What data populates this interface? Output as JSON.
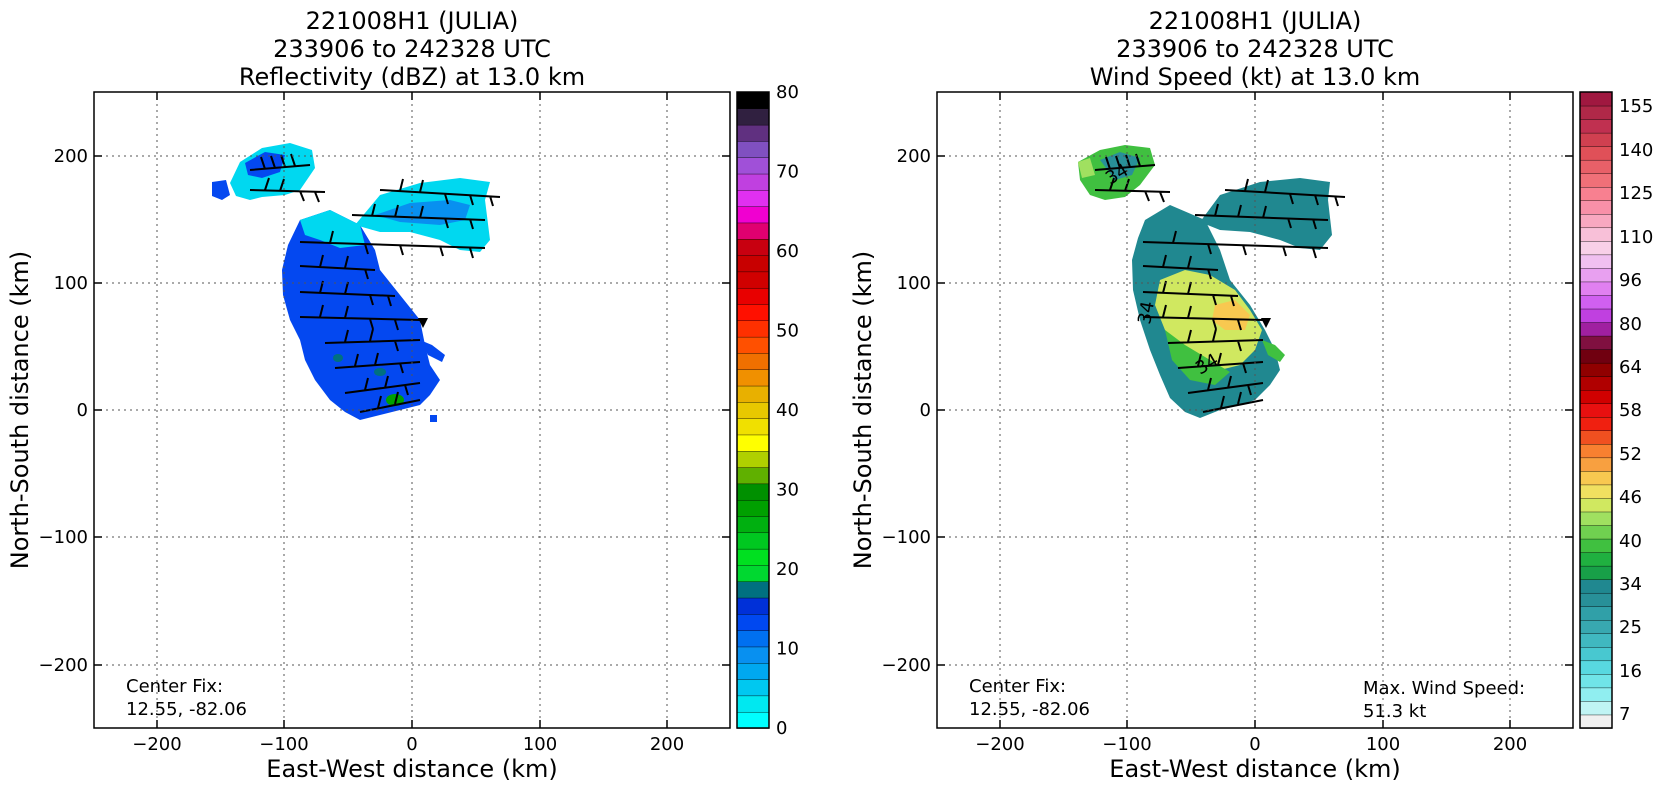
{
  "panels": [
    {
      "id": "reflectivity",
      "title_line1": "221008H1 (JULIA)",
      "title_line2": "233906 to 242328 UTC",
      "title_line3": "Reflectivity (dBZ) at 13.0 km",
      "xlabel": "East-West distance (km)",
      "ylabel": "North-South distance (km)",
      "center_fix_label": "Center Fix:",
      "center_fix_value": "12.55, -82.06",
      "colorbar_ticks": [
        "80",
        "70",
        "60",
        "50",
        "40",
        "30",
        "20",
        "10",
        "0"
      ],
      "colorbar_colors": [
        "#00ffff",
        "#00e8f0",
        "#00c8f0",
        "#00a8f0",
        "#0890f0",
        "#0070f0",
        "#0048f0",
        "#0030d8",
        "#007080",
        "#00d830",
        "#00e020",
        "#00c820",
        "#00b010",
        "#00a000",
        "#009000",
        "#60b000",
        "#b0d000",
        "#ffff00",
        "#f0e000",
        "#e8c800",
        "#e8b000",
        "#f09000",
        "#f07000",
        "#ff5000",
        "#ff3000",
        "#ff1000",
        "#e80000",
        "#d00000",
        "#c80000",
        "#c80010",
        "#e00070",
        "#f000d0",
        "#e030f0",
        "#c040e0",
        "#a050d8",
        "#8050c0",
        "#603080",
        "#302040",
        "#000000"
      ]
    },
    {
      "id": "windspeed",
      "title_line1": "221008H1 (JULIA)",
      "title_line2": "233906 to 242328 UTC",
      "title_line3": "Wind Speed (kt) at 13.0 km",
      "xlabel": "East-West distance (km)",
      "ylabel": "North-South distance (km)",
      "center_fix_label": "Center Fix:",
      "center_fix_value": "12.55, -82.06",
      "max_wind_label": "Max. Wind Speed:",
      "max_wind_value": "51.3 kt",
      "contour_labels": [
        "34",
        "34",
        "34"
      ],
      "colorbar_ticks": [
        "155",
        "140",
        "125",
        "110",
        "96",
        "80",
        "64",
        "58",
        "52",
        "46",
        "40",
        "34",
        "25",
        "16",
        "7"
      ],
      "colorbar_colors": [
        "#f0f0f0",
        "#c0f4f4",
        "#90eef0",
        "#70e4e8",
        "#58d8e0",
        "#48c8d0",
        "#40b8c0",
        "#38a8b0",
        "#30a0a8",
        "#289098",
        "#208890",
        "#18a048",
        "#20b040",
        "#40c040",
        "#70d050",
        "#a0e060",
        "#d0e860",
        "#f0e060",
        "#f8c850",
        "#f8a040",
        "#f88030",
        "#f05020",
        "#f02010",
        "#e81010",
        "#d00000",
        "#b00000",
        "#900000",
        "#700010",
        "#801040",
        "#a020a0",
        "#c040e0",
        "#d060f0",
        "#e080f0",
        "#e8a0f0",
        "#f0c0f0",
        "#f8d0e8",
        "#f8c0d8",
        "#f8a8c0",
        "#f890a8",
        "#f88090",
        "#f07078",
        "#e86068",
        "#e05058",
        "#d04050",
        "#c03050",
        "#b02848",
        "#a01840"
      ],
      "max_wind_kt": 51.3
    }
  ],
  "chart_data": [
    {
      "type": "heatmap",
      "title": "221008H1 (JULIA) 233906 to 242328 UTC Reflectivity (dBZ) at 13.0 km",
      "xlabel": "East-West distance (km)",
      "ylabel": "North-South distance (km)",
      "xlim": [
        -250,
        250
      ],
      "ylim": [
        -250,
        250
      ],
      "xticks": [
        -200,
        -100,
        0,
        100,
        200
      ],
      "yticks": [
        -200,
        -100,
        0,
        100,
        200
      ],
      "grid": true,
      "colorbar": {
        "label": "dBZ",
        "min": 0,
        "max": 80,
        "ticks": [
          0,
          10,
          20,
          30,
          40,
          50,
          60,
          70,
          80
        ]
      },
      "center_fix": "12.55, -82.06"
    },
    {
      "type": "heatmap",
      "title": "221008H1 (JULIA) 233906 to 242328 UTC Wind Speed (kt) at 13.0 km",
      "xlabel": "East-West distance (km)",
      "ylabel": "North-South distance (km)",
      "xlim": [
        -250,
        250
      ],
      "ylim": [
        -250,
        250
      ],
      "xticks": [
        -200,
        -100,
        0,
        100,
        200
      ],
      "yticks": [
        -200,
        -100,
        0,
        100,
        200
      ],
      "grid": true,
      "colorbar": {
        "label": "kt",
        "ticks": [
          7,
          16,
          25,
          34,
          40,
          46,
          52,
          58,
          64,
          80,
          96,
          110,
          125,
          140,
          155
        ]
      },
      "center_fix": "12.55, -82.06",
      "max_wind_speed": "51.3 kt",
      "contour_levels": [
        34
      ]
    }
  ]
}
